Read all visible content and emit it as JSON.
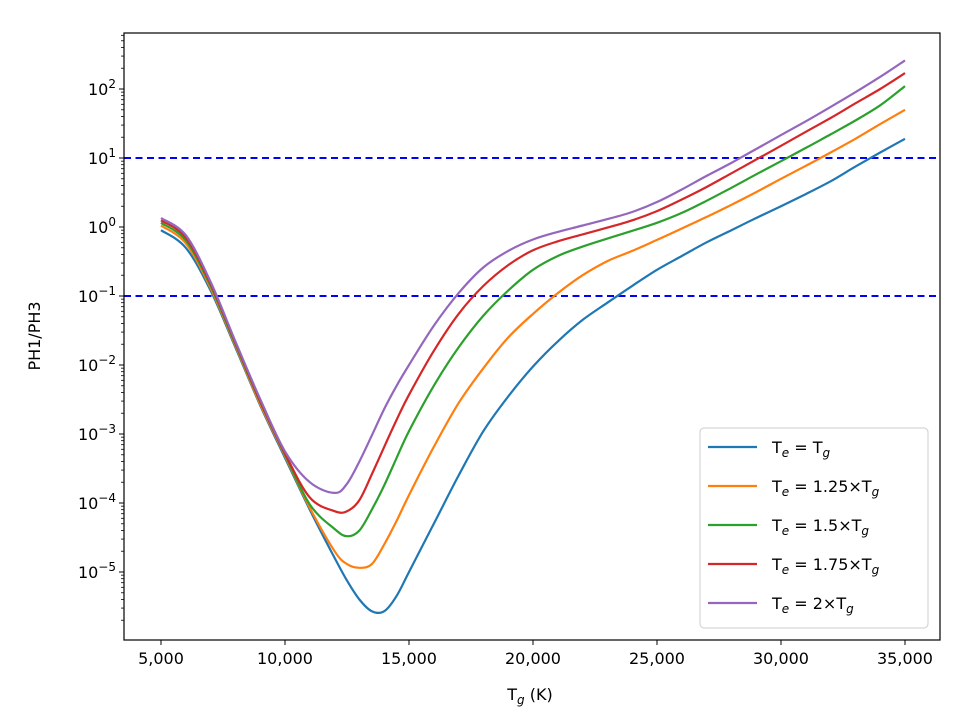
{
  "chart_data": {
    "type": "line",
    "title": "",
    "xlabel": "T_g (K)",
    "xlabel_main": "T",
    "xlabel_sub": "g",
    "xlabel_rest": " (K)",
    "ylabel": "PH1/PH3",
    "yscale": "log",
    "xlim": [
      3500,
      36500
    ],
    "ylim": [
      1e-06,
      650
    ],
    "grid": false,
    "legend_position": "lower right",
    "x_ticks": [
      5000,
      10000,
      15000,
      20000,
      25000,
      30000,
      35000
    ],
    "x_tick_labels": [
      "5,000",
      "10,000",
      "15,000",
      "20,000",
      "25,000",
      "30,000",
      "35,000"
    ],
    "y_ticks": [
      2,
      1,
      0,
      -1,
      -2,
      -3,
      -4,
      -5
    ],
    "y_tick_labels": [
      "10^2",
      "10^1",
      "10^0",
      "10^-1",
      "10^-2",
      "10^-3",
      "10^-4",
      "10^-5"
    ],
    "hlines": [
      {
        "y": 10,
        "color": "#0000ff",
        "style": "dashed"
      },
      {
        "y": 0.1,
        "color": "#0000ff",
        "style": "dashed"
      }
    ],
    "x": [
      5000,
      6000,
      7000,
      8000,
      9000,
      10000,
      11000,
      12000,
      12500,
      13000,
      13500,
      14000,
      14500,
      15000,
      16000,
      17000,
      18000,
      19000,
      20000,
      21000,
      22000,
      23000,
      24000,
      25000,
      26000,
      27000,
      28000,
      29000,
      30000,
      31000,
      32000,
      33000,
      34000,
      35000
    ],
    "series": [
      {
        "name": "Te = Tg",
        "label_main": "T",
        "label_sub": "e",
        "label_rest": " = T",
        "label_sub2": "g",
        "label_coef": "",
        "color": "#1f77b4",
        "values": [
          0.9,
          0.5,
          0.12,
          0.018,
          0.0026,
          0.00045,
          8e-05,
          1.6e-05,
          7.5e-06,
          4e-06,
          2.7e-06,
          2.7e-06,
          4.5e-06,
          1e-05,
          5e-05,
          0.00025,
          0.0011,
          0.0035,
          0.0095,
          0.022,
          0.045,
          0.08,
          0.14,
          0.24,
          0.38,
          0.6,
          0.9,
          1.35,
          2.0,
          3.0,
          4.6,
          7.5,
          12.0,
          19.0
        ]
      },
      {
        "name": "Te = 1.25×Tg",
        "color": "#ff7f0e",
        "values": [
          1.05,
          0.58,
          0.13,
          0.019,
          0.0027,
          0.00048,
          8.5e-05,
          2e-05,
          1.3e-05,
          1.15e-05,
          1.3e-05,
          2.5e-05,
          5.5e-05,
          0.00013,
          0.00065,
          0.0028,
          0.009,
          0.025,
          0.055,
          0.11,
          0.2,
          0.32,
          0.45,
          0.65,
          0.95,
          1.4,
          2.1,
          3.2,
          5.0,
          7.7,
          12.0,
          19.0,
          31.0,
          50.0
        ]
      },
      {
        "name": "Te = 1.5×Tg",
        "color": "#2ca02c",
        "values": [
          1.15,
          0.64,
          0.14,
          0.02,
          0.0029,
          0.0005,
          9.5e-05,
          4.2e-05,
          3.3e-05,
          4e-05,
          8e-05,
          0.00018,
          0.00045,
          0.0011,
          0.005,
          0.018,
          0.052,
          0.12,
          0.24,
          0.38,
          0.52,
          0.68,
          0.88,
          1.15,
          1.6,
          2.4,
          3.7,
          5.8,
          9.0,
          14.0,
          22.0,
          35.0,
          58.0,
          110.0
        ]
      },
      {
        "name": "Te = 1.75×Tg",
        "color": "#d62728",
        "values": [
          1.25,
          0.7,
          0.15,
          0.021,
          0.003,
          0.00052,
          0.00012,
          7.6e-05,
          7.6e-05,
          0.00011,
          0.00026,
          0.00065,
          0.0016,
          0.0037,
          0.016,
          0.055,
          0.14,
          0.28,
          0.46,
          0.62,
          0.78,
          0.98,
          1.25,
          1.7,
          2.5,
          3.8,
          6.0,
          9.5,
          15.0,
          24.0,
          38.0,
          62.0,
          100.0,
          170.0
        ]
      },
      {
        "name": "Te = 2×Tg",
        "color": "#9467bd",
        "values": [
          1.35,
          0.76,
          0.16,
          0.022,
          0.0032,
          0.00056,
          0.0002,
          0.00014,
          0.00019,
          0.0004,
          0.00095,
          0.0023,
          0.005,
          0.01,
          0.037,
          0.11,
          0.26,
          0.45,
          0.66,
          0.85,
          1.05,
          1.3,
          1.65,
          2.3,
          3.5,
          5.5,
          8.5,
          13.5,
          21.5,
          34.0,
          55.0,
          90.0,
          150.0,
          260.0
        ]
      }
    ],
    "legend": [
      {
        "coef": "",
        "color": "#1f77b4"
      },
      {
        "coef": "1.25×",
        "color": "#ff7f0e"
      },
      {
        "coef": "1.5×",
        "color": "#2ca02c"
      },
      {
        "coef": "1.75×",
        "color": "#d62728"
      },
      {
        "coef": "2×",
        "color": "#9467bd"
      }
    ]
  },
  "labels": {
    "ylabel": "PH1/PH3",
    "x_main": "T",
    "x_sub": "g",
    "x_rest": " (K)",
    "T": "T",
    "e": "e",
    "g": "g",
    "eq": " = ",
    "base": "10"
  }
}
